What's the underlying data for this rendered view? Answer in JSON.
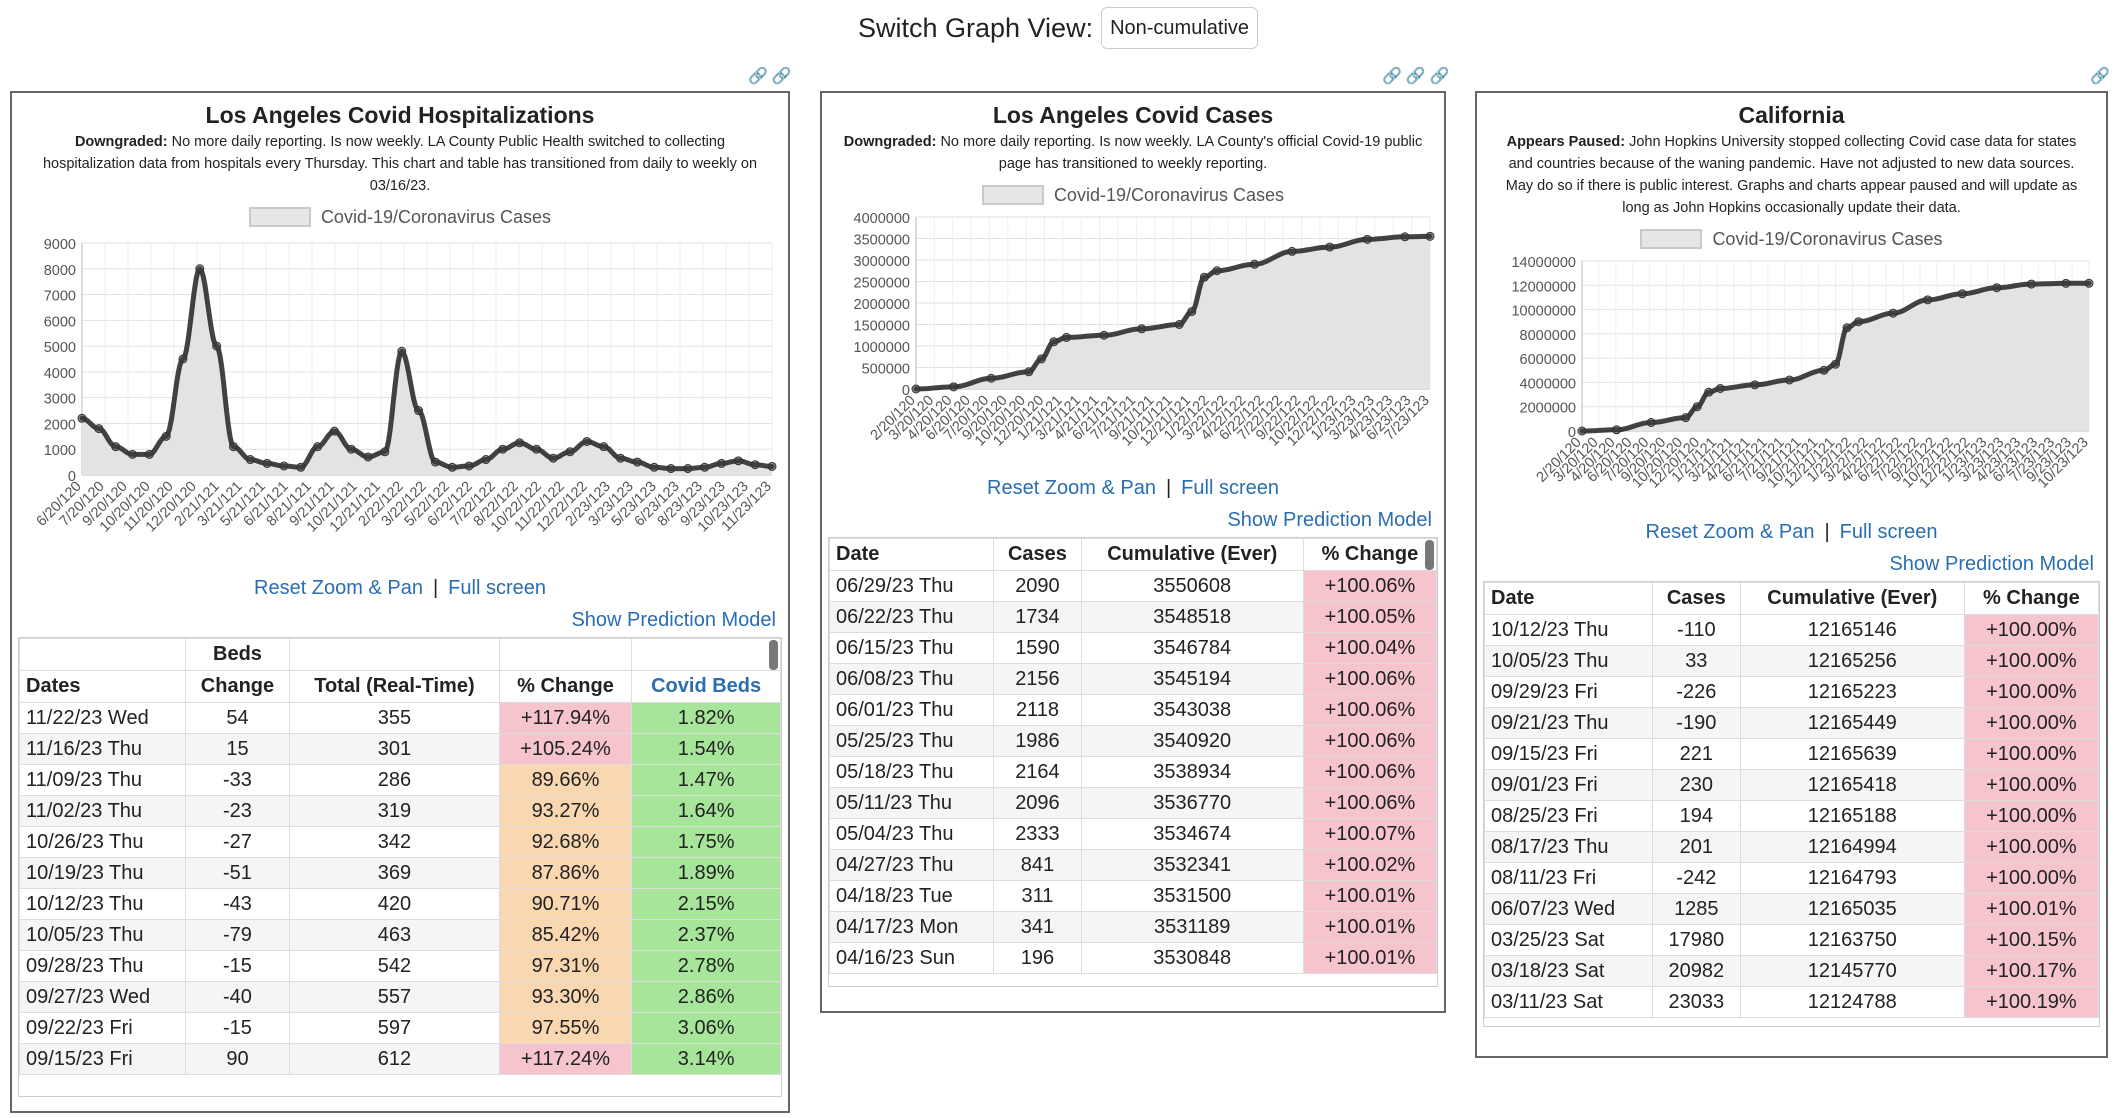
{
  "header": {
    "label": "Switch Graph View:",
    "select_value": "Non-cumulative"
  },
  "common": {
    "legend_label": "Covid-19/Coronavirus Cases",
    "reset_link": "Reset Zoom & Pan",
    "separator": "|",
    "fullscreen_link": "Full screen",
    "prediction_link": "Show Prediction Model",
    "link_icon": "link-icon"
  },
  "panels": {
    "hosp": {
      "title": "Los Angeles Covid Hospitalizations",
      "desc_bold": "Downgraded:",
      "desc_text": " No more daily reporting. Is now weekly. LA County Public Health switched to collecting hospitalization data from hospitals every Thursday. This chart and table has transitioned from daily to weekly on 03/16/23.",
      "table": {
        "group_header": "Beds",
        "headers": [
          "Dates",
          "Change",
          "Total (Real-Time)",
          "% Change",
          "Covid Beds"
        ],
        "rows": [
          [
            "11/22/23 Wed",
            "54",
            "355",
            "+117.94%",
            "1.82%"
          ],
          [
            "11/16/23 Thu",
            "15",
            "301",
            "+105.24%",
            "1.54%"
          ],
          [
            "11/09/23 Thu",
            "-33",
            "286",
            "89.66%",
            "1.47%"
          ],
          [
            "11/02/23 Thu",
            "-23",
            "319",
            "93.27%",
            "1.64%"
          ],
          [
            "10/26/23 Thu",
            "-27",
            "342",
            "92.68%",
            "1.75%"
          ],
          [
            "10/19/23 Thu",
            "-51",
            "369",
            "87.86%",
            "1.89%"
          ],
          [
            "10/12/23 Thu",
            "-43",
            "420",
            "90.71%",
            "2.15%"
          ],
          [
            "10/05/23 Thu",
            "-79",
            "463",
            "85.42%",
            "2.37%"
          ],
          [
            "09/28/23 Thu",
            "-15",
            "542",
            "97.31%",
            "2.78%"
          ],
          [
            "09/27/23 Wed",
            "-40",
            "557",
            "93.30%",
            "2.86%"
          ],
          [
            "09/22/23 Fri",
            "-15",
            "597",
            "97.55%",
            "3.06%"
          ],
          [
            "09/15/23 Fri",
            "90",
            "612",
            "+117.24%",
            "3.14%"
          ]
        ],
        "pct_colors": [
          "pink",
          "pink",
          "orange",
          "orange",
          "orange",
          "orange",
          "orange",
          "orange",
          "orange",
          "orange",
          "orange",
          "pink"
        ]
      }
    },
    "cases": {
      "title": "Los Angeles Covid Cases",
      "desc_bold": "Downgraded:",
      "desc_text": " No more daily reporting. Is now weekly. LA County's official Covid-19 public page has transitioned to weekly reporting.",
      "table": {
        "headers": [
          "Date",
          "Cases",
          "Cumulative (Ever)",
          "% Change"
        ],
        "rows": [
          [
            "06/29/23 Thu",
            "2090",
            "3550608",
            "+100.06%"
          ],
          [
            "06/22/23 Thu",
            "1734",
            "3548518",
            "+100.05%"
          ],
          [
            "06/15/23 Thu",
            "1590",
            "3546784",
            "+100.04%"
          ],
          [
            "06/08/23 Thu",
            "2156",
            "3545194",
            "+100.06%"
          ],
          [
            "06/01/23 Thu",
            "2118",
            "3543038",
            "+100.06%"
          ],
          [
            "05/25/23 Thu",
            "1986",
            "3540920",
            "+100.06%"
          ],
          [
            "05/18/23 Thu",
            "2164",
            "3538934",
            "+100.06%"
          ],
          [
            "05/11/23 Thu",
            "2096",
            "3536770",
            "+100.06%"
          ],
          [
            "05/04/23 Thu",
            "2333",
            "3534674",
            "+100.07%"
          ],
          [
            "04/27/23 Thu",
            "841",
            "3532341",
            "+100.02%"
          ],
          [
            "04/18/23 Tue",
            "311",
            "3531500",
            "+100.01%"
          ],
          [
            "04/17/23 Mon",
            "341",
            "3531189",
            "+100.01%"
          ],
          [
            "04/16/23 Sun",
            "196",
            "3530848",
            "+100.01%"
          ]
        ]
      }
    },
    "ca": {
      "title": "California",
      "desc_bold": "Appears Paused:",
      "desc_text": " John Hopkins University stopped collecting Covid case data for states and countries because of the waning pandemic. Have not adjusted to new data sources. May do so if there is public interest. Graphs and charts appear paused and will update as long as John Hopkins occasionally update their data.",
      "table": {
        "headers": [
          "Date",
          "Cases",
          "Cumulative (Ever)",
          "% Change"
        ],
        "rows": [
          [
            "10/12/23 Thu",
            "-110",
            "12165146",
            "+100.00%"
          ],
          [
            "10/05/23 Thu",
            "33",
            "12165256",
            "+100.00%"
          ],
          [
            "09/29/23 Fri",
            "-226",
            "12165223",
            "+100.00%"
          ],
          [
            "09/21/23 Thu",
            "-190",
            "12165449",
            "+100.00%"
          ],
          [
            "09/15/23 Fri",
            "221",
            "12165639",
            "+100.00%"
          ],
          [
            "09/01/23 Fri",
            "230",
            "12165418",
            "+100.00%"
          ],
          [
            "08/25/23 Fri",
            "194",
            "12165188",
            "+100.00%"
          ],
          [
            "08/17/23 Thu",
            "201",
            "12164994",
            "+100.00%"
          ],
          [
            "08/11/23 Fri",
            "-242",
            "12164793",
            "+100.00%"
          ],
          [
            "06/07/23 Wed",
            "1285",
            "12165035",
            "+100.01%"
          ],
          [
            "03/25/23 Sat",
            "17980",
            "12163750",
            "+100.15%"
          ],
          [
            "03/18/23 Sat",
            "20982",
            "12145770",
            "+100.17%"
          ],
          [
            "03/11/23 Sat",
            "23033",
            "12124788",
            "+100.19%"
          ]
        ]
      }
    }
  },
  "chart_data": [
    {
      "type": "area",
      "legend": [
        "Covid-19/Coronavirus Cases"
      ],
      "legend_position": "top",
      "grid": true,
      "ylim": [
        0,
        9000
      ],
      "yticks": [
        0,
        1000,
        2000,
        3000,
        4000,
        5000,
        6000,
        7000,
        8000,
        9000
      ],
      "xticks": [
        "6/20/120",
        "7/20/120",
        "9/20/120",
        "10/20/120",
        "11/20/120",
        "12/20/120",
        "2/21/121",
        "3/21/121",
        "5/21/121",
        "6/21/121",
        "8/21/121",
        "9/21/121",
        "10/21/121",
        "12/21/121",
        "2/22/122",
        "3/22/122",
        "5/22/122",
        "6/22/122",
        "7/22/122",
        "8/22/122",
        "10/22/122",
        "11/22/122",
        "12/22/122",
        "2/23/123",
        "3/23/123",
        "5/23/123",
        "6/23/123",
        "8/23/123",
        "9/23/123",
        "10/23/123",
        "11/23/123"
      ],
      "x": [
        "2020-06",
        "2020-07",
        "2020-08",
        "2020-09",
        "2020-10",
        "2020-11",
        "2020-12",
        "2021-01",
        "2021-02",
        "2021-03",
        "2021-04",
        "2021-05",
        "2021-06",
        "2021-07",
        "2021-08",
        "2021-09",
        "2021-10",
        "2021-11",
        "2021-12",
        "2022-01",
        "2022-02",
        "2022-03",
        "2022-04",
        "2022-05",
        "2022-06",
        "2022-07",
        "2022-08",
        "2022-09",
        "2022-10",
        "2022-11",
        "2022-12",
        "2023-01",
        "2023-02",
        "2023-03",
        "2023-04",
        "2023-05",
        "2023-06",
        "2023-07",
        "2023-08",
        "2023-09",
        "2023-10",
        "2023-11"
      ],
      "values": [
        2200,
        1800,
        1100,
        800,
        800,
        1500,
        4500,
        8000,
        5000,
        1100,
        600,
        450,
        350,
        300,
        1100,
        1700,
        1000,
        700,
        900,
        4800,
        2500,
        500,
        300,
        350,
        600,
        1000,
        1250,
        1000,
        650,
        900,
        1300,
        1100,
        650,
        500,
        300,
        250,
        250,
        300,
        450,
        550,
        400,
        330
      ]
    },
    {
      "type": "area",
      "legend": [
        "Covid-19/Coronavirus Cases"
      ],
      "legend_position": "top",
      "grid": true,
      "ylim": [
        0,
        4000000
      ],
      "yticks": [
        0,
        500000,
        1000000,
        1500000,
        2000000,
        2500000,
        3000000,
        3500000,
        4000000
      ],
      "xticks": [
        "2/20/120",
        "3/20/120",
        "4/20/120",
        "6/20/120",
        "7/20/120",
        "9/20/120",
        "10/20/120",
        "12/20/120",
        "1/21/121",
        "3/21/121",
        "4/21/121",
        "6/21/121",
        "7/21/121",
        "9/21/121",
        "10/21/121",
        "12/21/121",
        "1/22/122",
        "3/22/122",
        "4/22/122",
        "6/22/122",
        "7/22/122",
        "9/22/122",
        "10/22/122",
        "12/22/122",
        "1/23/123",
        "3/23/123",
        "4/23/123",
        "6/23/123",
        "7/23/123"
      ],
      "x": [
        "2020-02",
        "2020-05",
        "2020-08",
        "2020-11",
        "2020-12",
        "2021-01",
        "2021-02",
        "2021-05",
        "2021-08",
        "2021-11",
        "2021-12",
        "2022-01",
        "2022-02",
        "2022-05",
        "2022-08",
        "2022-11",
        "2023-02",
        "2023-05",
        "2023-07"
      ],
      "values": [
        0,
        50000,
        250000,
        400000,
        700000,
        1100000,
        1200000,
        1250000,
        1400000,
        1500000,
        1800000,
        2600000,
        2750000,
        2900000,
        3200000,
        3300000,
        3480000,
        3540000,
        3550000
      ]
    },
    {
      "type": "area",
      "legend": [
        "Covid-19/Coronavirus Cases"
      ],
      "legend_position": "top",
      "grid": true,
      "ylim": [
        0,
        14000000
      ],
      "yticks": [
        0,
        2000000,
        4000000,
        6000000,
        8000000,
        10000000,
        12000000,
        14000000
      ],
      "xticks": [
        "2/20/120",
        "3/20/120",
        "4/20/120",
        "6/20/120",
        "7/20/120",
        "9/20/120",
        "10/20/120",
        "12/20/120",
        "1/21/121",
        "3/21/121",
        "4/21/121",
        "6/21/121",
        "7/21/121",
        "9/21/121",
        "10/21/121",
        "12/21/121",
        "1/22/122",
        "3/22/122",
        "4/22/122",
        "6/22/122",
        "7/22/122",
        "9/22/122",
        "10/22/122",
        "12/22/122",
        "1/23/123",
        "3/23/123",
        "4/23/123",
        "6/23/123",
        "7/23/123",
        "9/23/123",
        "10/23/123"
      ],
      "x": [
        "2020-02",
        "2020-05",
        "2020-08",
        "2020-11",
        "2020-12",
        "2021-01",
        "2021-02",
        "2021-05",
        "2021-08",
        "2021-11",
        "2021-12",
        "2022-01",
        "2022-02",
        "2022-05",
        "2022-08",
        "2022-11",
        "2023-02",
        "2023-05",
        "2023-08",
        "2023-10"
      ],
      "values": [
        0,
        100000,
        700000,
        1100000,
        2000000,
        3200000,
        3500000,
        3800000,
        4200000,
        5000000,
        5500000,
        8500000,
        9000000,
        9700000,
        10800000,
        11300000,
        11800000,
        12100000,
        12160000,
        12165000
      ]
    }
  ]
}
